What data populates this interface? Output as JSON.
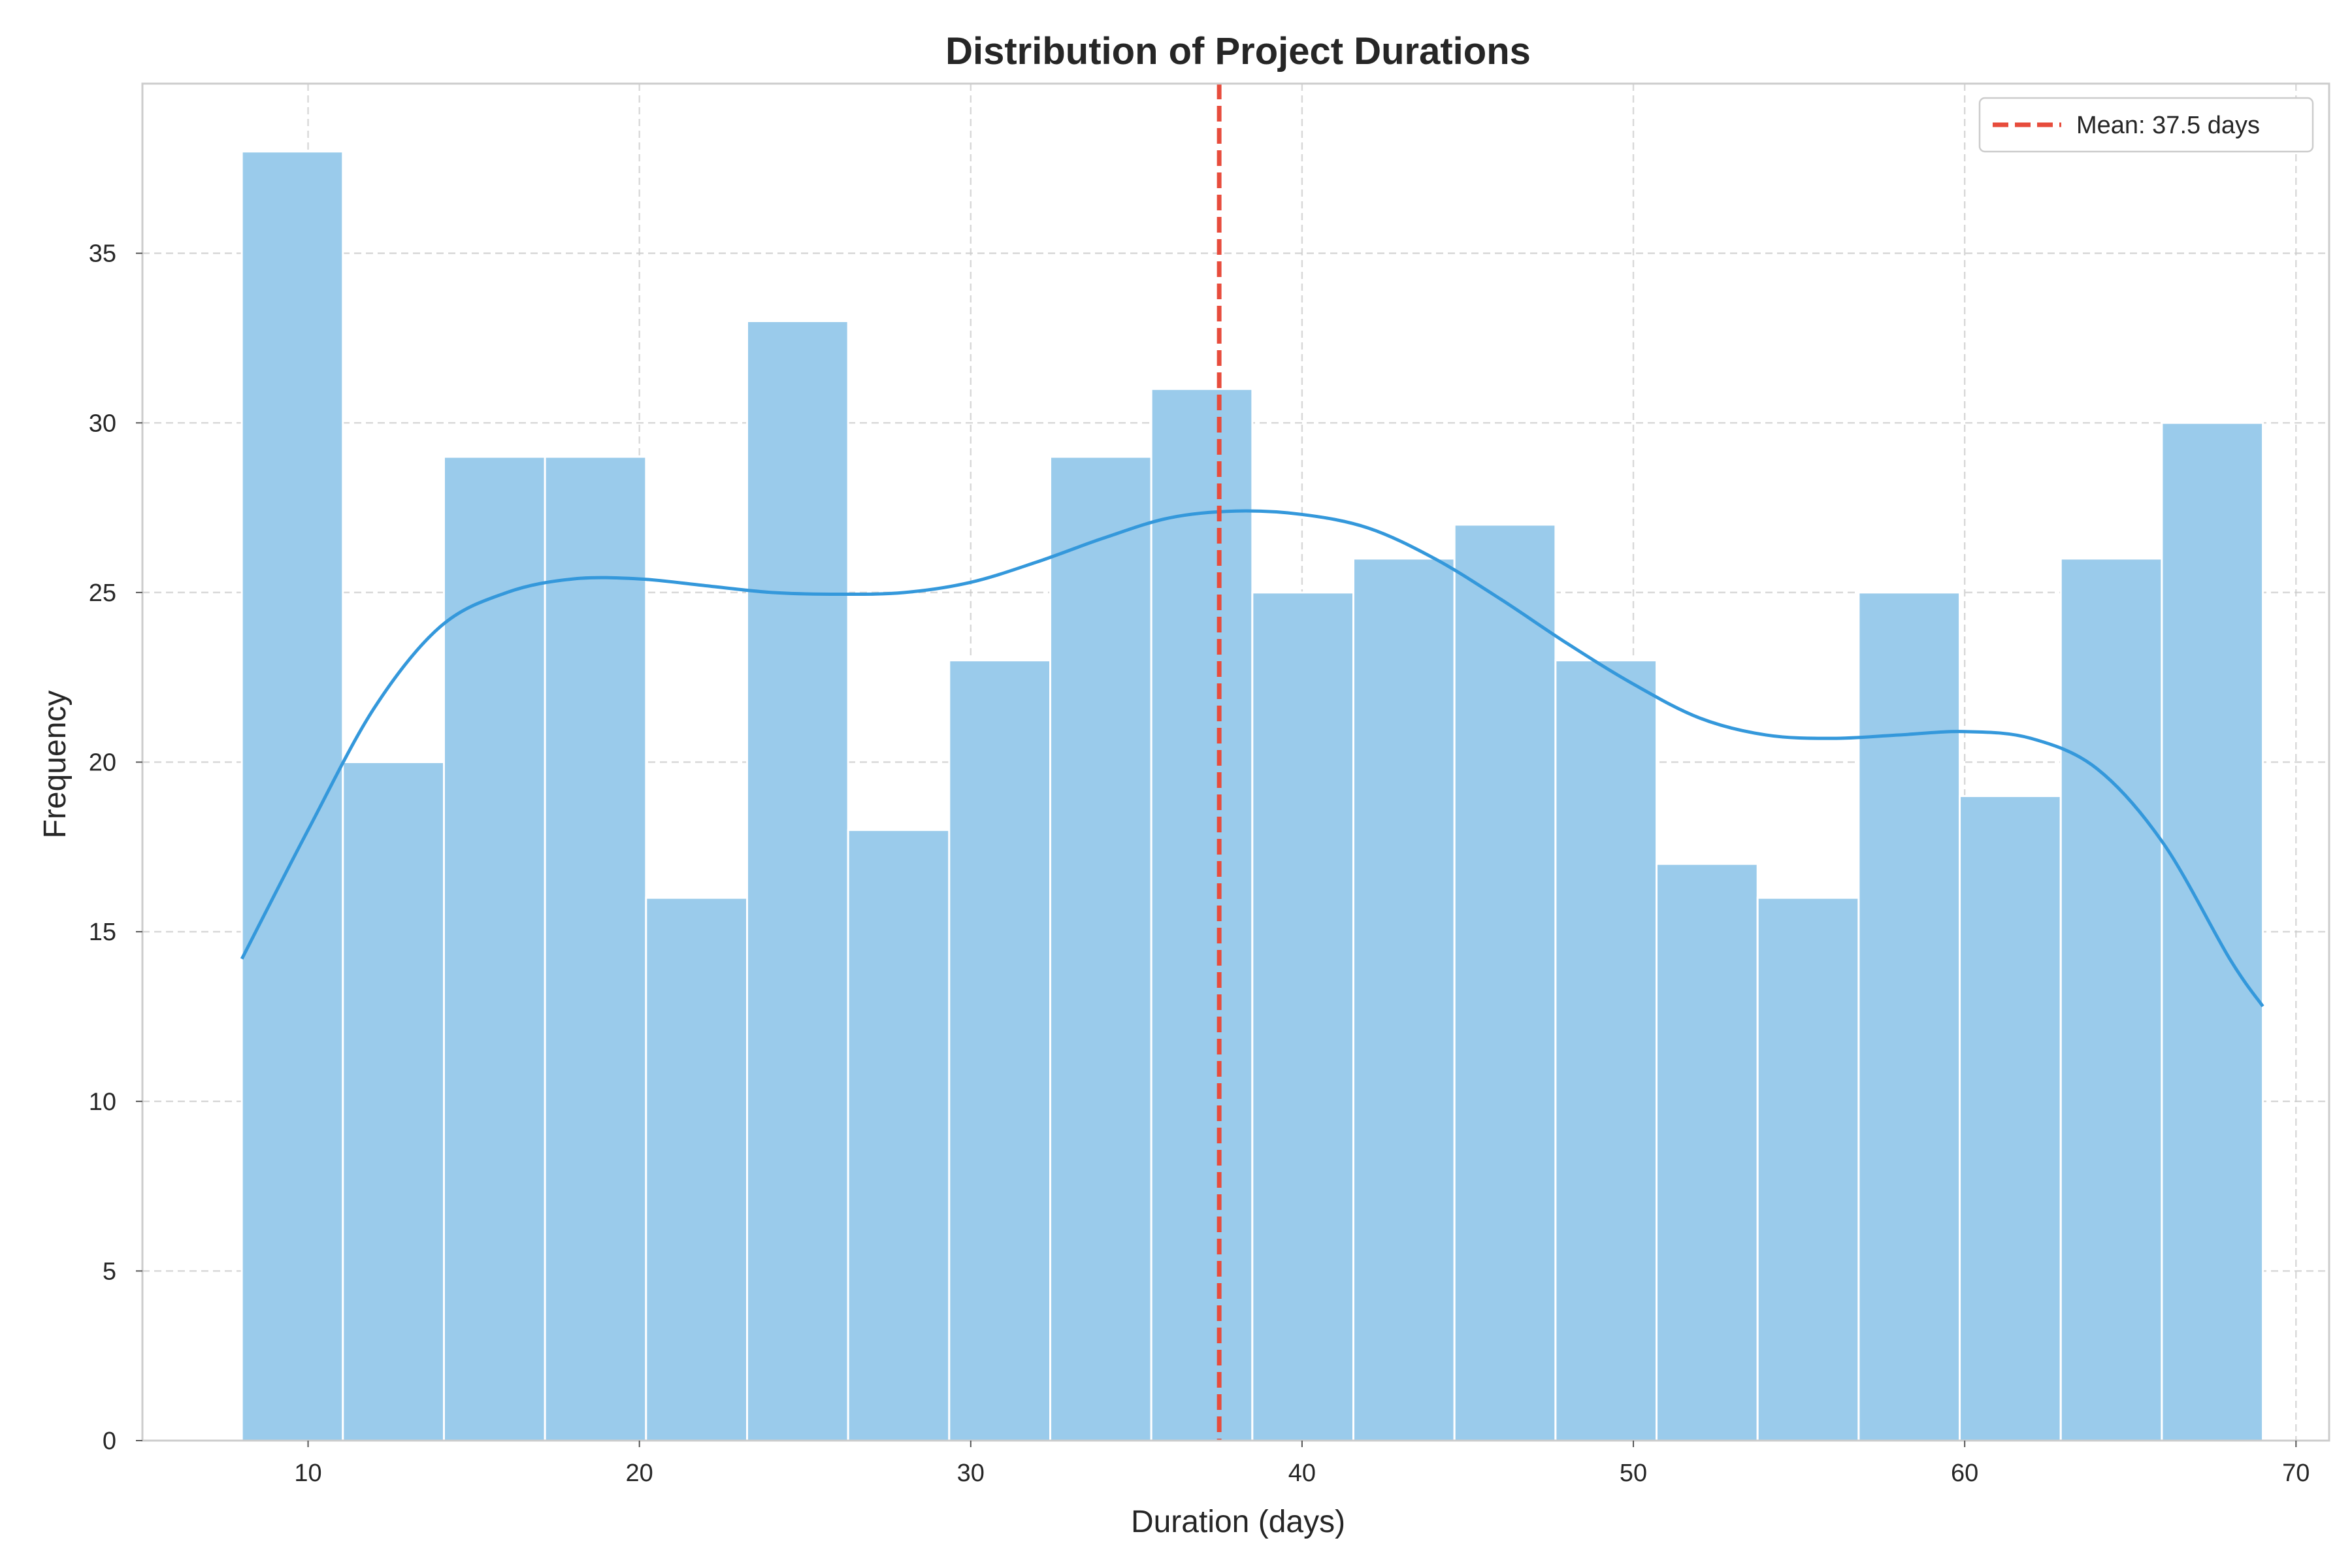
{
  "chart_data": {
    "type": "bar",
    "subtype": "histogram",
    "title": "Distribution of Project Durations",
    "xlabel": "Duration (days)",
    "ylabel": "Frequency",
    "xlim": [
      5,
      71
    ],
    "ylim": [
      0,
      40
    ],
    "xticks": [
      10,
      20,
      30,
      40,
      50,
      60,
      70
    ],
    "yticks": [
      0,
      5,
      10,
      15,
      20,
      25,
      30,
      35
    ],
    "grid": true,
    "bins": [
      {
        "start": 8.0,
        "end": 11.05,
        "count": 38
      },
      {
        "start": 11.05,
        "end": 14.1,
        "count": 20
      },
      {
        "start": 14.1,
        "end": 17.15,
        "count": 29
      },
      {
        "start": 17.15,
        "end": 20.2,
        "count": 29
      },
      {
        "start": 20.2,
        "end": 23.25,
        "count": 16
      },
      {
        "start": 23.25,
        "end": 26.3,
        "count": 33
      },
      {
        "start": 26.3,
        "end": 29.35,
        "count": 18
      },
      {
        "start": 29.35,
        "end": 32.4,
        "count": 23
      },
      {
        "start": 32.4,
        "end": 35.45,
        "count": 29
      },
      {
        "start": 35.45,
        "end": 38.5,
        "count": 31
      },
      {
        "start": 38.5,
        "end": 41.55,
        "count": 25
      },
      {
        "start": 41.55,
        "end": 44.6,
        "count": 26
      },
      {
        "start": 44.6,
        "end": 47.65,
        "count": 27
      },
      {
        "start": 47.65,
        "end": 50.7,
        "count": 23
      },
      {
        "start": 50.7,
        "end": 53.75,
        "count": 17
      },
      {
        "start": 53.75,
        "end": 56.8,
        "count": 16
      },
      {
        "start": 56.8,
        "end": 59.85,
        "count": 25
      },
      {
        "start": 59.85,
        "end": 62.9,
        "count": 19
      },
      {
        "start": 62.9,
        "end": 65.95,
        "count": 26
      },
      {
        "start": 65.95,
        "end": 69.0,
        "count": 30
      }
    ],
    "kde": {
      "x": [
        8,
        10,
        12,
        14,
        16,
        18,
        20,
        22,
        24,
        26,
        28,
        30,
        32,
        34,
        36,
        38,
        40,
        42,
        44,
        46,
        48,
        50,
        52,
        54,
        56,
        58,
        60,
        62,
        64,
        66,
        68,
        69
      ],
      "y": [
        14.2,
        18.0,
        21.6,
        24.0,
        25.0,
        25.4,
        25.4,
        25.2,
        25.0,
        24.95,
        25.0,
        25.3,
        25.9,
        26.6,
        27.2,
        27.4,
        27.3,
        26.9,
        26.0,
        24.8,
        23.5,
        22.3,
        21.3,
        20.8,
        20.7,
        20.8,
        20.9,
        20.7,
        19.8,
        17.6,
        14.2,
        12.8
      ]
    },
    "mean_line": {
      "x": 37.5,
      "label": "Mean: 37.5 days"
    },
    "legend": {
      "position": "top-right",
      "entries": [
        "Mean: 37.5 days"
      ]
    },
    "colors": {
      "bars": "#9acbeb",
      "bar_edge": "#ffffff",
      "kde": "#3498db",
      "mean": "#e74c3c",
      "axes": "#cccccc"
    }
  }
}
